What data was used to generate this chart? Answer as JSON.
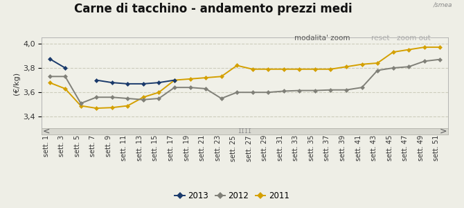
{
  "title": "Carne di tacchino - andamento prezzi medi",
  "ylabel": "(€/kg)",
  "ylim": [
    3.3,
    4.05
  ],
  "yticks": [
    3.4,
    3.6,
    3.8,
    4.0
  ],
  "background_color": "#eeeee6",
  "plot_bg_color": "#f0f0e8",
  "grid_color": "#ccccbc",
  "modalita_text": "modalita' zoom",
  "reset_text": "reset",
  "zoomout_text": "zoom out",
  "x_labels": [
    "sett. 1",
    "sett. 3",
    "sett. 5",
    "sett. 7",
    "sett. 9",
    "sett. 11",
    "sett. 13",
    "sett. 15",
    "sett. 17",
    "sett. 19",
    "sett. 21",
    "sett. 23",
    "sett. 25",
    "sett. 27",
    "sett. 29",
    "sett. 31",
    "sett. 33",
    "sett. 35",
    "sett. 37",
    "sett. 39",
    "sett. 41",
    "sett. 43",
    "sett. 45",
    "sett. 47",
    "sett. 49",
    "sett. 51"
  ],
  "series_2013": [
    3.875,
    3.8,
    null,
    3.7,
    3.68,
    3.67,
    3.67,
    3.68,
    3.7,
    null,
    null,
    null,
    null,
    null,
    null,
    null,
    null,
    null,
    null,
    null,
    null,
    null,
    null,
    null,
    null,
    null
  ],
  "series_2012": [
    3.73,
    3.73,
    3.51,
    3.56,
    3.56,
    3.55,
    3.54,
    3.55,
    3.64,
    3.64,
    3.63,
    3.55,
    3.6,
    3.6,
    3.6,
    3.61,
    3.615,
    3.615,
    3.62,
    3.62,
    3.64,
    3.78,
    3.8,
    3.81,
    3.855,
    3.87
  ],
  "series_2011": [
    3.68,
    3.63,
    3.49,
    3.47,
    3.475,
    3.49,
    3.56,
    3.6,
    3.7,
    3.71,
    3.72,
    3.73,
    3.82,
    3.79,
    3.79,
    3.79,
    3.79,
    3.79,
    3.79,
    3.81,
    3.83,
    3.84,
    3.93,
    3.95,
    3.97,
    3.97
  ],
  "color_2013": "#1a3a6b",
  "color_2012": "#808078",
  "color_2011": "#d4a000",
  "legend_2013": "2013",
  "legend_2012": "2012",
  "legend_2011": "2011",
  "scrollbar_bg": "#d8d8d0",
  "scrollbar_border": "#b0b0a8",
  "title_fontsize": 12,
  "axis_fontsize": 8,
  "tick_fontsize": 8,
  "label_fontsize": 7
}
